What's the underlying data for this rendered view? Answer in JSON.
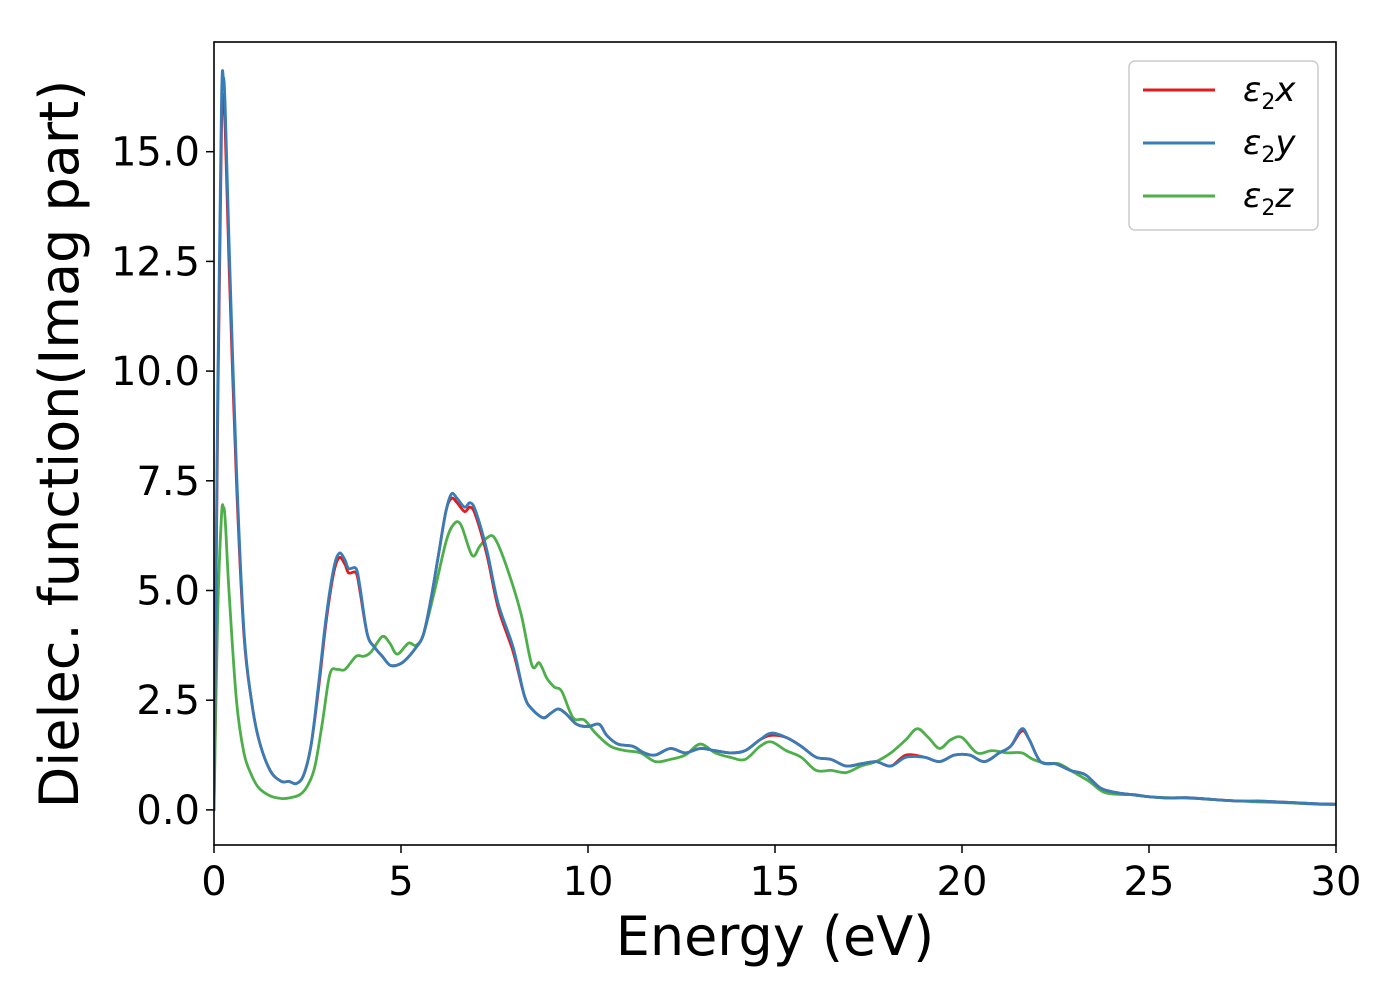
{
  "chart_data": {
    "type": "line",
    "title": "",
    "xlabel": "Energy (eV)",
    "ylabel": "Dielec. function(Imag part)",
    "xlim": [
      0,
      30
    ],
    "ylim": [
      -0.8,
      17.5
    ],
    "xticks": [
      0,
      5,
      10,
      15,
      20,
      25,
      30
    ],
    "xtick_labels": [
      "0",
      "5",
      "10",
      "15",
      "20",
      "25",
      "30"
    ],
    "yticks": [
      0,
      2.5,
      5,
      7.5,
      10,
      12.5,
      15
    ],
    "ytick_labels": [
      "0.0",
      "2.5",
      "5.0",
      "7.5",
      "10.0",
      "12.5",
      "15.0"
    ],
    "grid": false,
    "legend_position": "top-right",
    "series": [
      {
        "name": "ε2x",
        "legend": {
          "base": "ε",
          "sub": "2",
          "suffix": "x"
        },
        "color": "#e41a1c",
        "points": [
          [
            0,
            0.0
          ],
          [
            0.1,
            9.0
          ],
          [
            0.2,
            15.5
          ],
          [
            0.25,
            16.2
          ],
          [
            0.3,
            15.5
          ],
          [
            0.4,
            12.5
          ],
          [
            0.6,
            7.5
          ],
          [
            0.8,
            4.0
          ],
          [
            1.0,
            2.5
          ],
          [
            1.2,
            1.6
          ],
          [
            1.5,
            0.9
          ],
          [
            1.8,
            0.65
          ],
          [
            2.0,
            0.65
          ],
          [
            2.2,
            0.6
          ],
          [
            2.4,
            0.8
          ],
          [
            2.6,
            1.5
          ],
          [
            2.8,
            2.8
          ],
          [
            3.0,
            4.3
          ],
          [
            3.2,
            5.4
          ],
          [
            3.35,
            5.75
          ],
          [
            3.5,
            5.6
          ],
          [
            3.6,
            5.4
          ],
          [
            3.8,
            5.4
          ],
          [
            3.9,
            5.0
          ],
          [
            4.1,
            4.0
          ],
          [
            4.3,
            3.7
          ],
          [
            4.5,
            3.5
          ],
          [
            4.7,
            3.3
          ],
          [
            4.9,
            3.3
          ],
          [
            5.1,
            3.4
          ],
          [
            5.4,
            3.7
          ],
          [
            5.6,
            4.0
          ],
          [
            5.8,
            4.8
          ],
          [
            6.0,
            5.8
          ],
          [
            6.2,
            6.8
          ],
          [
            6.35,
            7.1
          ],
          [
            6.5,
            7.0
          ],
          [
            6.7,
            6.8
          ],
          [
            6.85,
            6.9
          ],
          [
            7.0,
            6.7
          ],
          [
            7.3,
            5.8
          ],
          [
            7.6,
            4.6
          ],
          [
            8.0,
            3.6
          ],
          [
            8.3,
            2.6
          ],
          [
            8.5,
            2.3
          ],
          [
            8.8,
            2.1
          ],
          [
            9.0,
            2.2
          ],
          [
            9.2,
            2.3
          ],
          [
            9.4,
            2.2
          ],
          [
            9.7,
            1.95
          ],
          [
            10.0,
            1.9
          ],
          [
            10.3,
            1.95
          ],
          [
            10.5,
            1.7
          ],
          [
            10.8,
            1.5
          ],
          [
            11.2,
            1.45
          ],
          [
            11.5,
            1.3
          ],
          [
            11.8,
            1.25
          ],
          [
            12.2,
            1.4
          ],
          [
            12.6,
            1.3
          ],
          [
            13.0,
            1.4
          ],
          [
            13.4,
            1.35
          ],
          [
            13.8,
            1.3
          ],
          [
            14.2,
            1.35
          ],
          [
            14.6,
            1.6
          ],
          [
            14.9,
            1.7
          ],
          [
            15.3,
            1.65
          ],
          [
            15.7,
            1.45
          ],
          [
            16.1,
            1.2
          ],
          [
            16.5,
            1.15
          ],
          [
            16.9,
            1.0
          ],
          [
            17.3,
            1.05
          ],
          [
            17.7,
            1.1
          ],
          [
            18.1,
            1.0
          ],
          [
            18.5,
            1.25
          ],
          [
            19.0,
            1.2
          ],
          [
            19.4,
            1.1
          ],
          [
            19.8,
            1.25
          ],
          [
            20.2,
            1.25
          ],
          [
            20.6,
            1.1
          ],
          [
            21.0,
            1.3
          ],
          [
            21.3,
            1.45
          ],
          [
            21.6,
            1.8
          ],
          [
            21.8,
            1.6
          ],
          [
            22.1,
            1.1
          ],
          [
            22.5,
            1.05
          ],
          [
            22.9,
            0.9
          ],
          [
            23.3,
            0.8
          ],
          [
            23.7,
            0.5
          ],
          [
            24.1,
            0.4
          ],
          [
            24.5,
            0.35
          ],
          [
            25.0,
            0.3
          ],
          [
            25.5,
            0.27
          ],
          [
            26.0,
            0.28
          ],
          [
            26.5,
            0.25
          ],
          [
            27.0,
            0.22
          ],
          [
            27.5,
            0.2
          ],
          [
            28.0,
            0.2
          ],
          [
            28.5,
            0.18
          ],
          [
            29.0,
            0.16
          ],
          [
            29.5,
            0.14
          ],
          [
            30.0,
            0.13
          ]
        ]
      },
      {
        "name": "ε2y",
        "legend": {
          "base": "ε",
          "sub": "2",
          "suffix": "y"
        },
        "color": "#377eb8",
        "points": [
          [
            0,
            0.0
          ],
          [
            0.1,
            9.6
          ],
          [
            0.2,
            16.1
          ],
          [
            0.25,
            16.7
          ],
          [
            0.3,
            16.0
          ],
          [
            0.4,
            13.0
          ],
          [
            0.6,
            7.8
          ],
          [
            0.8,
            4.1
          ],
          [
            1.0,
            2.5
          ],
          [
            1.2,
            1.6
          ],
          [
            1.5,
            0.9
          ],
          [
            1.8,
            0.65
          ],
          [
            2.0,
            0.65
          ],
          [
            2.2,
            0.6
          ],
          [
            2.4,
            0.8
          ],
          [
            2.6,
            1.5
          ],
          [
            2.8,
            2.9
          ],
          [
            3.0,
            4.4
          ],
          [
            3.2,
            5.5
          ],
          [
            3.35,
            5.85
          ],
          [
            3.5,
            5.7
          ],
          [
            3.6,
            5.5
          ],
          [
            3.8,
            5.5
          ],
          [
            3.9,
            5.1
          ],
          [
            4.1,
            4.0
          ],
          [
            4.3,
            3.7
          ],
          [
            4.5,
            3.5
          ],
          [
            4.7,
            3.3
          ],
          [
            4.9,
            3.3
          ],
          [
            5.1,
            3.4
          ],
          [
            5.4,
            3.7
          ],
          [
            5.6,
            4.0
          ],
          [
            5.8,
            4.8
          ],
          [
            6.0,
            5.8
          ],
          [
            6.2,
            6.8
          ],
          [
            6.35,
            7.2
          ],
          [
            6.5,
            7.1
          ],
          [
            6.7,
            6.9
          ],
          [
            6.85,
            7.0
          ],
          [
            7.0,
            6.8
          ],
          [
            7.3,
            5.9
          ],
          [
            7.6,
            4.7
          ],
          [
            8.0,
            3.7
          ],
          [
            8.3,
            2.6
          ],
          [
            8.5,
            2.3
          ],
          [
            8.8,
            2.1
          ],
          [
            9.0,
            2.2
          ],
          [
            9.2,
            2.3
          ],
          [
            9.4,
            2.2
          ],
          [
            9.7,
            1.95
          ],
          [
            10.0,
            1.9
          ],
          [
            10.3,
            1.95
          ],
          [
            10.5,
            1.7
          ],
          [
            10.8,
            1.5
          ],
          [
            11.2,
            1.45
          ],
          [
            11.5,
            1.3
          ],
          [
            11.8,
            1.25
          ],
          [
            12.2,
            1.4
          ],
          [
            12.6,
            1.3
          ],
          [
            13.0,
            1.4
          ],
          [
            13.4,
            1.35
          ],
          [
            13.8,
            1.3
          ],
          [
            14.2,
            1.35
          ],
          [
            14.6,
            1.6
          ],
          [
            14.9,
            1.75
          ],
          [
            15.3,
            1.65
          ],
          [
            15.7,
            1.45
          ],
          [
            16.1,
            1.2
          ],
          [
            16.5,
            1.15
          ],
          [
            16.9,
            1.0
          ],
          [
            17.3,
            1.05
          ],
          [
            17.7,
            1.1
          ],
          [
            18.1,
            1.0
          ],
          [
            18.5,
            1.2
          ],
          [
            19.0,
            1.2
          ],
          [
            19.4,
            1.1
          ],
          [
            19.8,
            1.25
          ],
          [
            20.2,
            1.25
          ],
          [
            20.6,
            1.1
          ],
          [
            21.0,
            1.3
          ],
          [
            21.3,
            1.45
          ],
          [
            21.6,
            1.85
          ],
          [
            21.8,
            1.6
          ],
          [
            22.1,
            1.1
          ],
          [
            22.5,
            1.05
          ],
          [
            22.9,
            0.9
          ],
          [
            23.3,
            0.8
          ],
          [
            23.7,
            0.5
          ],
          [
            24.1,
            0.4
          ],
          [
            24.5,
            0.35
          ],
          [
            25.0,
            0.3
          ],
          [
            25.5,
            0.27
          ],
          [
            26.0,
            0.28
          ],
          [
            26.5,
            0.25
          ],
          [
            27.0,
            0.22
          ],
          [
            27.5,
            0.2
          ],
          [
            28.0,
            0.2
          ],
          [
            28.5,
            0.18
          ],
          [
            29.0,
            0.16
          ],
          [
            29.5,
            0.14
          ],
          [
            30.0,
            0.13
          ]
        ]
      },
      {
        "name": "ε2z",
        "legend": {
          "base": "ε",
          "sub": "2",
          "suffix": "z"
        },
        "color": "#4daf4a",
        "points": [
          [
            0,
            0.0
          ],
          [
            0.1,
            4.5
          ],
          [
            0.2,
            6.7
          ],
          [
            0.25,
            6.9
          ],
          [
            0.3,
            6.6
          ],
          [
            0.4,
            5.0
          ],
          [
            0.6,
            2.5
          ],
          [
            0.8,
            1.3
          ],
          [
            1.0,
            0.8
          ],
          [
            1.2,
            0.5
          ],
          [
            1.5,
            0.32
          ],
          [
            1.8,
            0.26
          ],
          [
            2.0,
            0.27
          ],
          [
            2.3,
            0.35
          ],
          [
            2.5,
            0.55
          ],
          [
            2.7,
            1.0
          ],
          [
            2.9,
            2.0
          ],
          [
            3.1,
            3.1
          ],
          [
            3.3,
            3.2
          ],
          [
            3.5,
            3.2
          ],
          [
            3.8,
            3.5
          ],
          [
            4.0,
            3.5
          ],
          [
            4.2,
            3.6
          ],
          [
            4.5,
            3.95
          ],
          [
            4.7,
            3.8
          ],
          [
            4.9,
            3.55
          ],
          [
            5.2,
            3.8
          ],
          [
            5.4,
            3.75
          ],
          [
            5.6,
            4.0
          ],
          [
            5.9,
            5.0
          ],
          [
            6.2,
            6.1
          ],
          [
            6.4,
            6.5
          ],
          [
            6.6,
            6.5
          ],
          [
            6.9,
            5.8
          ],
          [
            7.1,
            6.0
          ],
          [
            7.3,
            6.2
          ],
          [
            7.5,
            6.2
          ],
          [
            7.8,
            5.6
          ],
          [
            8.2,
            4.5
          ],
          [
            8.5,
            3.3
          ],
          [
            8.7,
            3.35
          ],
          [
            8.9,
            3.0
          ],
          [
            9.1,
            2.8
          ],
          [
            9.3,
            2.7
          ],
          [
            9.6,
            2.1
          ],
          [
            9.9,
            2.05
          ],
          [
            10.2,
            1.75
          ],
          [
            10.6,
            1.45
          ],
          [
            11.0,
            1.35
          ],
          [
            11.4,
            1.3
          ],
          [
            11.8,
            1.1
          ],
          [
            12.2,
            1.15
          ],
          [
            12.6,
            1.25
          ],
          [
            13.0,
            1.5
          ],
          [
            13.4,
            1.3
          ],
          [
            13.8,
            1.2
          ],
          [
            14.2,
            1.15
          ],
          [
            14.6,
            1.45
          ],
          [
            14.9,
            1.55
          ],
          [
            15.3,
            1.35
          ],
          [
            15.7,
            1.2
          ],
          [
            16.1,
            0.9
          ],
          [
            16.5,
            0.9
          ],
          [
            16.9,
            0.85
          ],
          [
            17.3,
            1.0
          ],
          [
            17.7,
            1.1
          ],
          [
            18.1,
            1.3
          ],
          [
            18.5,
            1.6
          ],
          [
            18.8,
            1.85
          ],
          [
            19.1,
            1.65
          ],
          [
            19.4,
            1.4
          ],
          [
            19.7,
            1.6
          ],
          [
            20.0,
            1.65
          ],
          [
            20.4,
            1.3
          ],
          [
            20.8,
            1.35
          ],
          [
            21.2,
            1.3
          ],
          [
            21.6,
            1.3
          ],
          [
            21.9,
            1.15
          ],
          [
            22.3,
            1.05
          ],
          [
            22.6,
            1.05
          ],
          [
            23.0,
            0.85
          ],
          [
            23.4,
            0.65
          ],
          [
            23.8,
            0.4
          ],
          [
            24.3,
            0.35
          ],
          [
            24.6,
            0.35
          ],
          [
            25.0,
            0.3
          ],
          [
            25.5,
            0.28
          ],
          [
            26.0,
            0.27
          ],
          [
            26.5,
            0.25
          ],
          [
            27.0,
            0.22
          ],
          [
            27.5,
            0.2
          ],
          [
            28.0,
            0.18
          ],
          [
            28.5,
            0.17
          ],
          [
            29.0,
            0.15
          ],
          [
            29.5,
            0.13
          ],
          [
            30.0,
            0.12
          ]
        ]
      }
    ]
  }
}
